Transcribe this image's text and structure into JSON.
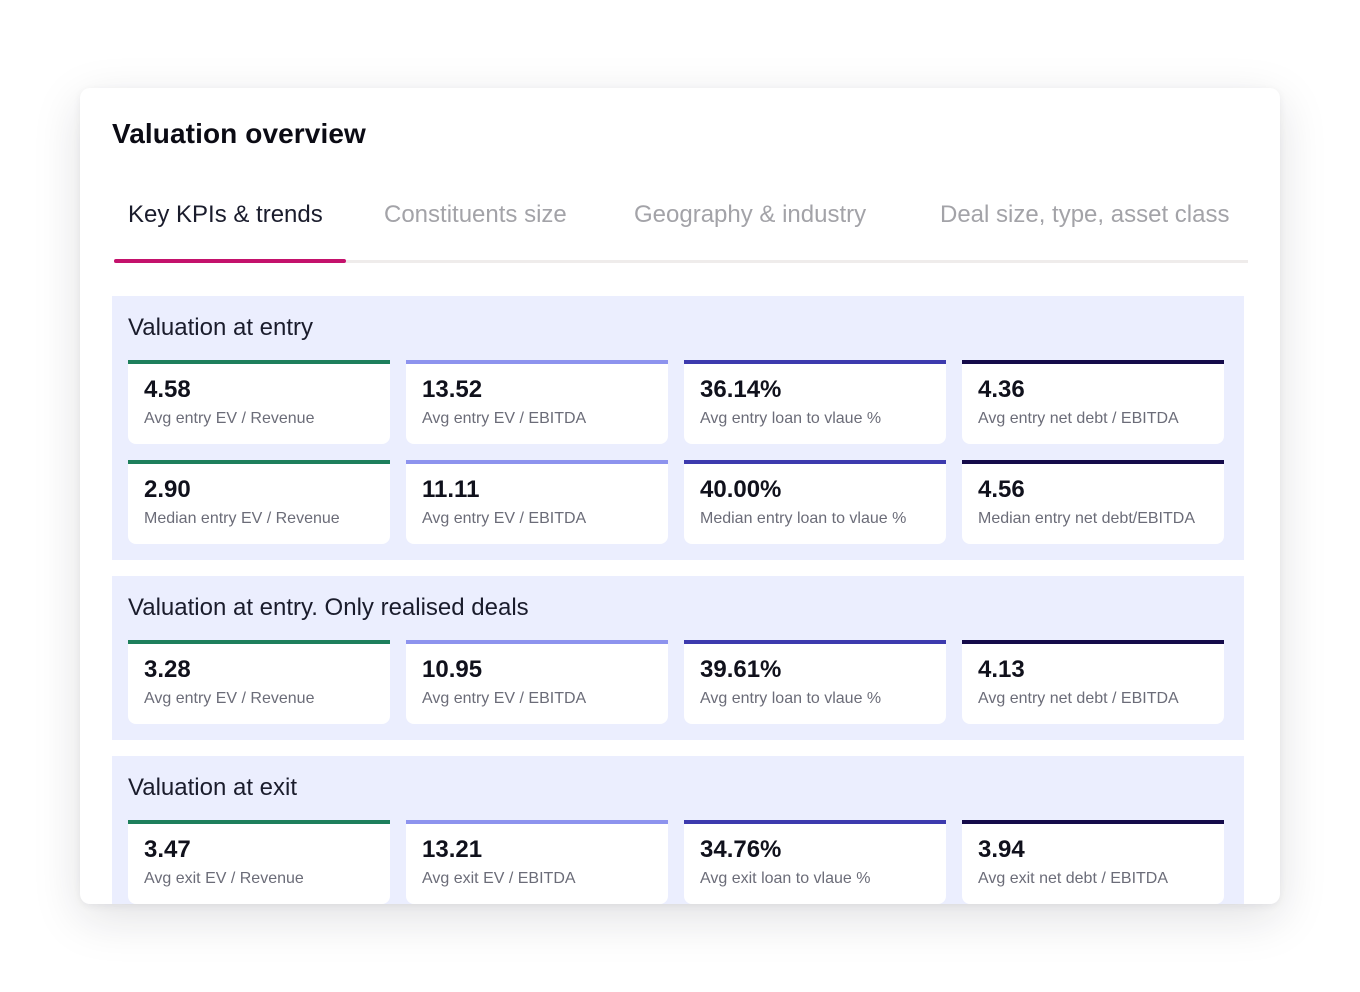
{
  "page": {
    "title": "Valuation overview"
  },
  "tabs": [
    {
      "label": "Key KPIs & trends",
      "active": true
    },
    {
      "label": "Constituents size",
      "active": false
    },
    {
      "label": "Geography & industry",
      "active": false
    },
    {
      "label": "Deal size, type, asset class",
      "active": false
    }
  ],
  "colors": {
    "tab_indicator": "#c4126c",
    "section_background": "#ebeefe",
    "bar_green": "#1e7f5c",
    "bar_periwinkle": "#8d93ee",
    "bar_indigo": "#3d3aae",
    "bar_navy": "#150b4a"
  },
  "sections": [
    {
      "title": "Valuation at entry",
      "rows": [
        [
          {
            "value": "4.58",
            "label": "Avg entry EV / Revenue"
          },
          {
            "value": "13.52",
            "label": "Avg entry EV / EBITDA"
          },
          {
            "value": "36.14%",
            "label": "Avg entry loan to vlaue %"
          },
          {
            "value": "4.36",
            "label": "Avg entry net debt / EBITDA"
          }
        ],
        [
          {
            "value": "2.90",
            "label": "Median entry EV / Revenue"
          },
          {
            "value": "11.11",
            "label": "Avg entry EV / EBITDA"
          },
          {
            "value": "40.00%",
            "label": "Median entry loan to vlaue %"
          },
          {
            "value": "4.56",
            "label": "Median entry net debt/EBITDA"
          }
        ]
      ]
    },
    {
      "title": "Valuation at entry. Only realised deals",
      "rows": [
        [
          {
            "value": "3.28",
            "label": "Avg entry EV / Revenue"
          },
          {
            "value": "10.95",
            "label": "Avg entry EV / EBITDA"
          },
          {
            "value": "39.61%",
            "label": "Avg entry loan to vlaue %"
          },
          {
            "value": "4.13",
            "label": "Avg entry net debt / EBITDA"
          }
        ]
      ]
    },
    {
      "title": "Valuation at exit",
      "rows": [
        [
          {
            "value": "3.47",
            "label": "Avg exit EV / Revenue"
          },
          {
            "value": "13.21",
            "label": "Avg exit EV / EBITDA"
          },
          {
            "value": "34.76%",
            "label": "Avg exit loan to vlaue %"
          },
          {
            "value": "3.94",
            "label": "Avg exit net debt / EBITDA"
          }
        ]
      ]
    }
  ]
}
